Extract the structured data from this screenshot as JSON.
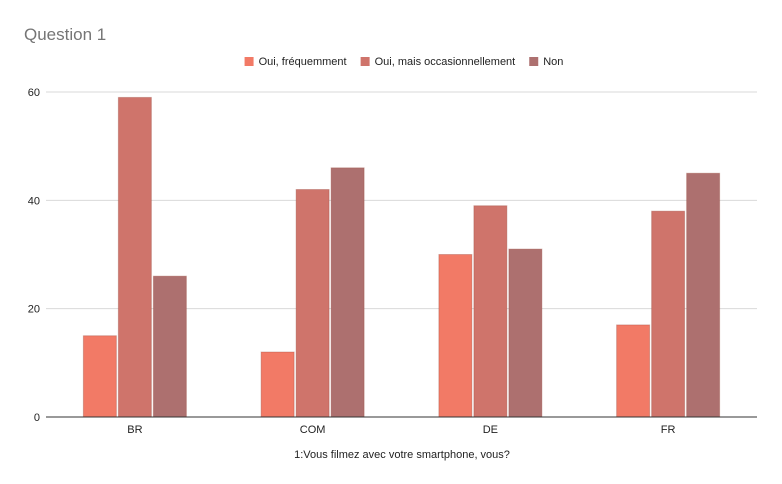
{
  "chart_data": {
    "type": "bar",
    "title": "Question 1",
    "xlabel": "1:Vous filmez avec votre smartphone, vous?",
    "ylabel": "",
    "categories": [
      "BR",
      "COM",
      "DE",
      "FR"
    ],
    "ylim": [
      0,
      60
    ],
    "yticks": [
      0,
      20,
      40,
      60
    ],
    "grid": true,
    "legend_position": "top-center",
    "series": [
      {
        "name": "Oui, fréquemment",
        "color": "#f27a66",
        "values": [
          15,
          12,
          30,
          17
        ]
      },
      {
        "name": "Oui, mais occasionnellement",
        "color": "#cf746b",
        "values": [
          59,
          42,
          39,
          38
        ]
      },
      {
        "name": "Non",
        "color": "#ad706f",
        "values": [
          26,
          46,
          31,
          45
        ]
      }
    ]
  }
}
